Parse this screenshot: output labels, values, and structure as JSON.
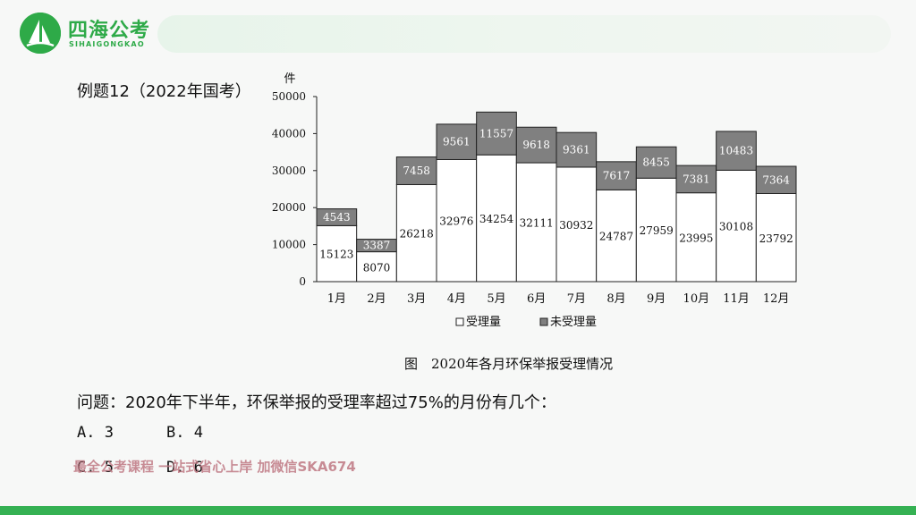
{
  "logo": {
    "name": "四海公考",
    "subtitle": "SIHAIGONGKAO",
    "brand_color": "#2eaa48"
  },
  "example_title": "例题12（2022年国考）",
  "question": "问题：2020年下半年，环保举报的受理率超过75%的月份有几个：",
  "options": {
    "a": "A. 3",
    "b": "B. 4",
    "c": "C. 5",
    "d": "D. 6"
  },
  "watermark": "最全公考课程 一站式省心上岸 加微信SKA674",
  "colors": {
    "accepted_fill": "#ffffff",
    "unaccepted_fill": "#808080",
    "bottom_bar": "#35b153"
  },
  "chart_data": {
    "type": "bar",
    "stacked": true,
    "title": "图　2020年各月环保举报受理情况",
    "ylabel": "件",
    "ylim": [
      0,
      50000
    ],
    "yticks": [
      0,
      10000,
      20000,
      30000,
      40000,
      50000
    ],
    "categories": [
      "1月",
      "2月",
      "3月",
      "4月",
      "5月",
      "6月",
      "7月",
      "8月",
      "9月",
      "10月",
      "11月",
      "12月"
    ],
    "series": [
      {
        "name": "受理量",
        "values": [
          15123,
          8070,
          26218,
          32976,
          34254,
          32111,
          30932,
          24787,
          27959,
          23995,
          30108,
          23792
        ]
      },
      {
        "name": "未受理量",
        "values": [
          4543,
          3387,
          7458,
          9561,
          11557,
          9618,
          9361,
          7617,
          8455,
          7381,
          10483,
          7364
        ]
      }
    ],
    "legend_placement": "bottom",
    "grid": false
  }
}
